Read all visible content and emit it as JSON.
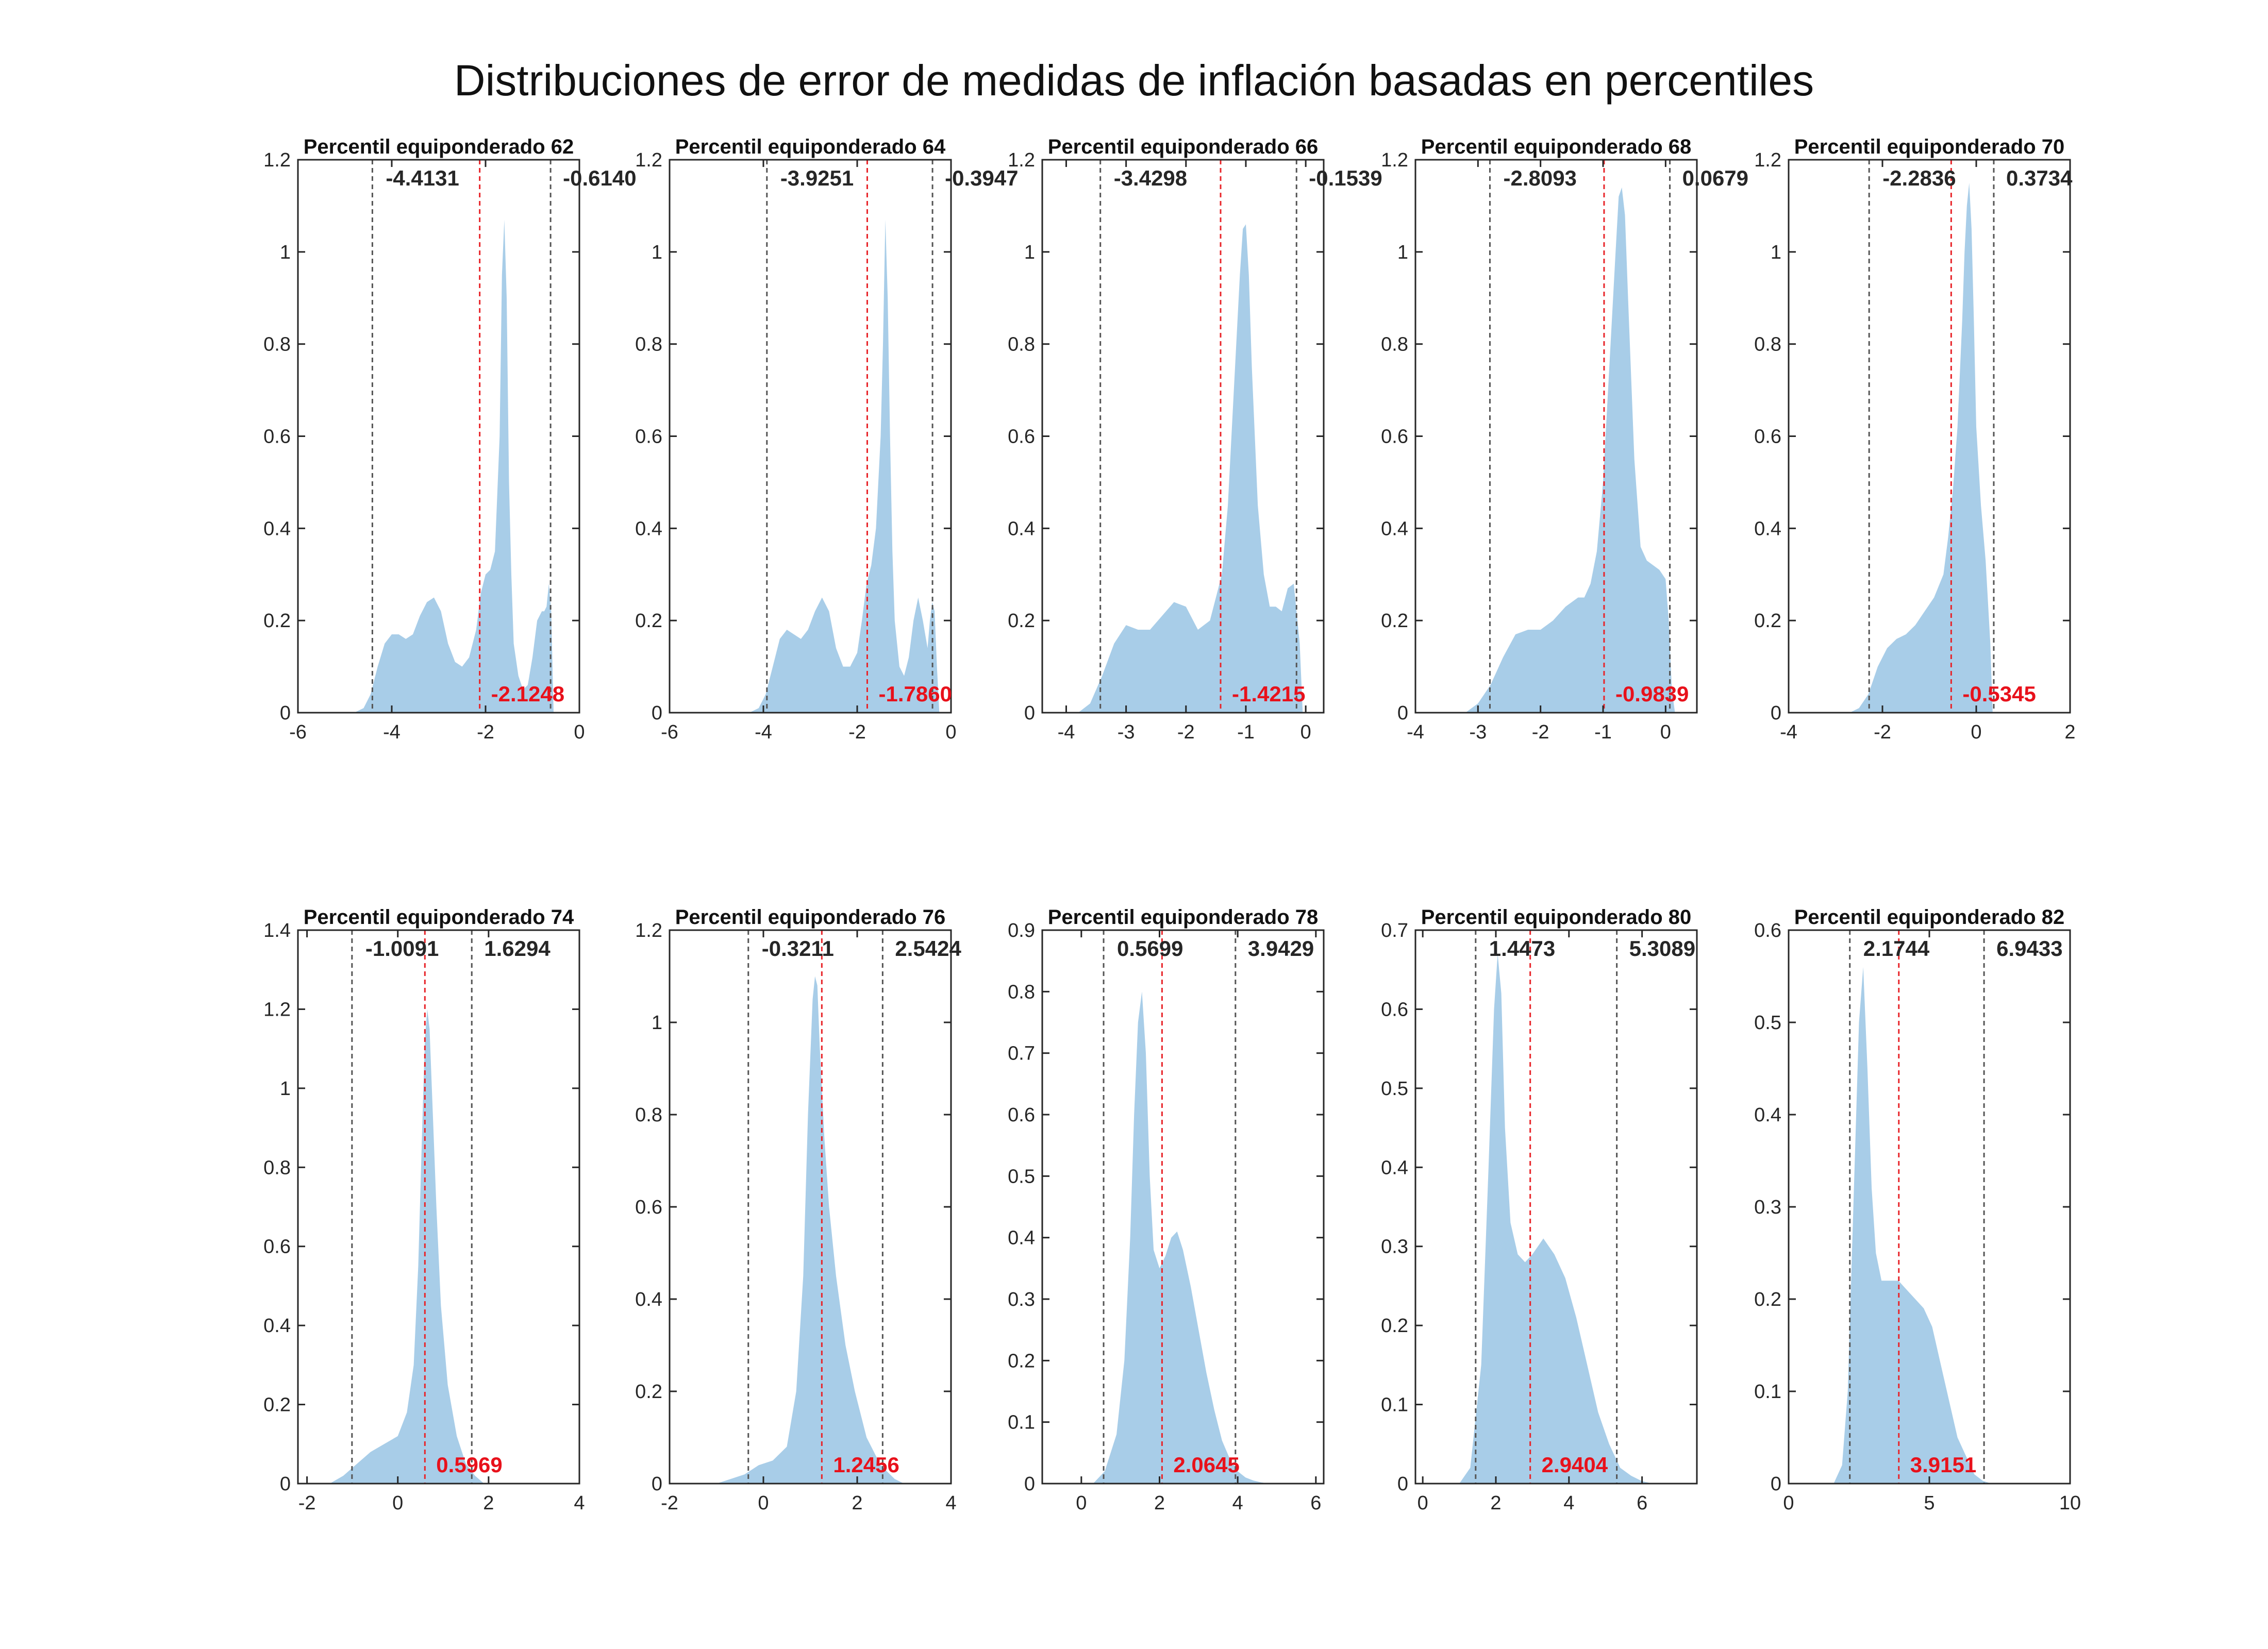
{
  "title": "Distribuciones de error de medidas de inflación basadas en percentiles",
  "colors": {
    "fill": "#a8cde8",
    "lower_upper_lines": "#555555",
    "median_line": "#e8252a",
    "median_label": "#e8111b"
  },
  "chart_data": [
    {
      "type": "area",
      "title": "Percentil equiponderado 62",
      "xlim": [
        -6,
        0
      ],
      "ylim": [
        0,
        1.2
      ],
      "xticks": [
        -6,
        -4,
        -2,
        0
      ],
      "yticks": [
        0,
        0.2,
        0.4,
        0.6,
        0.8,
        1,
        1.2
      ],
      "lower": -4.4131,
      "upper": -0.614,
      "median": -2.1248,
      "lower_label": "-4.4131",
      "upper_label": "-0.6140",
      "median_label": "-2.1248",
      "x": [
        -4.8,
        -4.6,
        -4.45,
        -4.3,
        -4.15,
        -4.0,
        -3.85,
        -3.7,
        -3.55,
        -3.4,
        -3.25,
        -3.1,
        -2.95,
        -2.8,
        -2.65,
        -2.5,
        -2.35,
        -2.2,
        -2.1,
        -2.0,
        -1.9,
        -1.8,
        -1.7,
        -1.65,
        -1.6,
        -1.55,
        -1.5,
        -1.45,
        -1.4,
        -1.3,
        -1.2,
        -1.1,
        -1.0,
        -0.9,
        -0.8,
        -0.75,
        -0.7,
        -0.65,
        -0.6,
        -0.55
      ],
      "y": [
        0,
        0.01,
        0.04,
        0.1,
        0.15,
        0.17,
        0.17,
        0.16,
        0.17,
        0.21,
        0.24,
        0.25,
        0.22,
        0.15,
        0.11,
        0.1,
        0.12,
        0.18,
        0.26,
        0.3,
        0.31,
        0.35,
        0.6,
        0.95,
        1.07,
        0.9,
        0.5,
        0.3,
        0.15,
        0.08,
        0.05,
        0.06,
        0.12,
        0.2,
        0.22,
        0.22,
        0.23,
        0.28,
        0.22,
        0
      ]
    },
    {
      "type": "area",
      "title": "Percentil equiponderado 64",
      "xlim": [
        -6,
        0
      ],
      "ylim": [
        0,
        1.2
      ],
      "xticks": [
        -6,
        -4,
        -2,
        0
      ],
      "yticks": [
        0,
        0.2,
        0.4,
        0.6,
        0.8,
        1,
        1.2
      ],
      "lower": -3.9251,
      "upper": -0.3947,
      "median": -1.786,
      "lower_label": "-3.9251",
      "upper_label": "-0.3947",
      "median_label": "-1.7860",
      "x": [
        -4.3,
        -4.1,
        -3.95,
        -3.8,
        -3.65,
        -3.5,
        -3.35,
        -3.2,
        -3.05,
        -2.9,
        -2.75,
        -2.6,
        -2.45,
        -2.3,
        -2.15,
        -2.0,
        -1.9,
        -1.8,
        -1.7,
        -1.6,
        -1.5,
        -1.45,
        -1.4,
        -1.35,
        -1.3,
        -1.25,
        -1.2,
        -1.1,
        -1.0,
        -0.9,
        -0.8,
        -0.7,
        -0.6,
        -0.5,
        -0.45,
        -0.4,
        -0.35,
        -0.3,
        -0.25
      ],
      "y": [
        0,
        0.01,
        0.04,
        0.1,
        0.16,
        0.18,
        0.17,
        0.16,
        0.18,
        0.22,
        0.25,
        0.22,
        0.14,
        0.1,
        0.1,
        0.13,
        0.2,
        0.28,
        0.32,
        0.4,
        0.6,
        0.8,
        1.07,
        0.9,
        0.6,
        0.35,
        0.2,
        0.1,
        0.08,
        0.12,
        0.2,
        0.25,
        0.2,
        0.14,
        0.2,
        0.24,
        0.22,
        0.1,
        0
      ]
    },
    {
      "type": "area",
      "title": "Percentil equiponderado 66",
      "xlim": [
        -4.4,
        0.3
      ],
      "ylim": [
        0,
        1.2
      ],
      "xticks": [
        -4,
        -3,
        -2,
        -1,
        0
      ],
      "yticks": [
        0,
        0.2,
        0.4,
        0.6,
        0.8,
        1,
        1.2
      ],
      "lower": -3.4298,
      "upper": -0.1539,
      "median": -1.4215,
      "lower_label": "-3.4298",
      "upper_label": "-0.1539",
      "median_label": "-1.4215",
      "x": [
        -3.8,
        -3.6,
        -3.4,
        -3.2,
        -3.0,
        -2.8,
        -2.6,
        -2.4,
        -2.2,
        -2.0,
        -1.8,
        -1.6,
        -1.4,
        -1.3,
        -1.2,
        -1.1,
        -1.05,
        -1.0,
        -0.95,
        -0.9,
        -0.8,
        -0.7,
        -0.6,
        -0.5,
        -0.4,
        -0.3,
        -0.2,
        -0.1,
        -0.05
      ],
      "y": [
        0,
        0.02,
        0.08,
        0.15,
        0.19,
        0.18,
        0.18,
        0.21,
        0.24,
        0.23,
        0.18,
        0.2,
        0.3,
        0.45,
        0.7,
        0.95,
        1.05,
        1.06,
        0.95,
        0.75,
        0.45,
        0.3,
        0.23,
        0.23,
        0.22,
        0.27,
        0.28,
        0.15,
        0
      ]
    },
    {
      "type": "area",
      "title": "Percentil equiponderado 68",
      "xlim": [
        -4,
        0.5
      ],
      "ylim": [
        0,
        1.2
      ],
      "xticks": [
        -4,
        -3,
        -2,
        -1,
        0
      ],
      "yticks": [
        0,
        0.2,
        0.4,
        0.6,
        0.8,
        1,
        1.2
      ],
      "lower": -2.8093,
      "upper": 0.0679,
      "median": -0.9839,
      "lower_label": "-2.8093",
      "upper_label": "0.0679",
      "median_label": "-0.9839",
      "x": [
        -3.2,
        -3.0,
        -2.8,
        -2.6,
        -2.4,
        -2.2,
        -2.0,
        -1.8,
        -1.6,
        -1.4,
        -1.3,
        -1.2,
        -1.1,
        -1.0,
        -0.9,
        -0.8,
        -0.75,
        -0.7,
        -0.65,
        -0.6,
        -0.5,
        -0.4,
        -0.3,
        -0.2,
        -0.1,
        0.0,
        0.05,
        0.1,
        0.15
      ],
      "y": [
        0,
        0.02,
        0.06,
        0.12,
        0.17,
        0.18,
        0.18,
        0.2,
        0.23,
        0.25,
        0.25,
        0.28,
        0.35,
        0.5,
        0.75,
        1.0,
        1.12,
        1.14,
        1.08,
        0.9,
        0.55,
        0.36,
        0.33,
        0.32,
        0.31,
        0.29,
        0.2,
        0.05,
        0
      ]
    },
    {
      "type": "area",
      "title": "Percentil equiponderado 70",
      "xlim": [
        -4,
        2
      ],
      "ylim": [
        0,
        1.2
      ],
      "xticks": [
        -4,
        -2,
        0,
        2
      ],
      "yticks": [
        0,
        0.2,
        0.4,
        0.6,
        0.8,
        1,
        1.2
      ],
      "lower": -2.2836,
      "upper": 0.3734,
      "median": -0.5345,
      "lower_label": "-2.2836",
      "upper_label": "0.3734",
      "median_label": "-0.5345",
      "x": [
        -2.7,
        -2.5,
        -2.3,
        -2.1,
        -1.9,
        -1.7,
        -1.5,
        -1.3,
        -1.1,
        -0.9,
        -0.7,
        -0.6,
        -0.5,
        -0.4,
        -0.3,
        -0.25,
        -0.2,
        -0.15,
        -0.1,
        -0.05,
        0.0,
        0.1,
        0.2,
        0.3,
        0.35
      ],
      "y": [
        0,
        0.01,
        0.04,
        0.1,
        0.14,
        0.16,
        0.17,
        0.19,
        0.22,
        0.25,
        0.3,
        0.38,
        0.48,
        0.62,
        0.85,
        1.0,
        1.1,
        1.15,
        1.05,
        0.85,
        0.62,
        0.45,
        0.33,
        0.15,
        0
      ]
    },
    {
      "type": "area",
      "title": "Percentil equiponderado 74",
      "xlim": [
        -2.2,
        4
      ],
      "ylim": [
        0,
        1.4
      ],
      "xticks": [
        -2,
        0,
        2,
        4
      ],
      "yticks": [
        0,
        0.2,
        0.4,
        0.6,
        0.8,
        1,
        1.2,
        1.4
      ],
      "lower": -1.0091,
      "upper": 1.6294,
      "median": 0.5969,
      "lower_label": "-1.0091",
      "upper_label": "1.6294",
      "median_label": "0.5969",
      "x": [
        -1.5,
        -1.2,
        -0.9,
        -0.6,
        -0.3,
        0.0,
        0.2,
        0.35,
        0.45,
        0.55,
        0.6,
        0.65,
        0.7,
        0.75,
        0.85,
        0.95,
        1.1,
        1.3,
        1.5,
        1.7,
        1.9
      ],
      "y": [
        0,
        0.02,
        0.05,
        0.08,
        0.1,
        0.12,
        0.18,
        0.3,
        0.55,
        0.95,
        1.13,
        1.2,
        1.15,
        1.0,
        0.7,
        0.45,
        0.25,
        0.12,
        0.05,
        0.02,
        0
      ]
    },
    {
      "type": "area",
      "title": "Percentil equiponderado 76",
      "xlim": [
        -2,
        4
      ],
      "ylim": [
        0,
        1.2
      ],
      "xticks": [
        -2,
        0,
        2,
        4
      ],
      "yticks": [
        0,
        0.2,
        0.4,
        0.6,
        0.8,
        1,
        1.2
      ],
      "lower": -0.3211,
      "upper": 2.5424,
      "median": 1.2456,
      "lower_label": "-0.3211",
      "upper_label": "2.5424",
      "median_label": "1.2456",
      "x": [
        -1.0,
        -0.7,
        -0.4,
        -0.1,
        0.2,
        0.5,
        0.7,
        0.85,
        0.95,
        1.05,
        1.1,
        1.15,
        1.2,
        1.3,
        1.4,
        1.55,
        1.75,
        1.95,
        2.2,
        2.5,
        2.8,
        3.0
      ],
      "y": [
        0,
        0.01,
        0.02,
        0.04,
        0.05,
        0.08,
        0.2,
        0.45,
        0.8,
        1.05,
        1.1,
        1.08,
        0.95,
        0.75,
        0.6,
        0.45,
        0.3,
        0.2,
        0.1,
        0.04,
        0.01,
        0
      ]
    },
    {
      "type": "area",
      "title": "Percentil equiponderado 78",
      "xlim": [
        -1,
        6.2
      ],
      "ylim": [
        0,
        0.9
      ],
      "xticks": [
        0,
        2,
        4,
        6
      ],
      "yticks": [
        0,
        0.1,
        0.2,
        0.3,
        0.4,
        0.5,
        0.6,
        0.7,
        0.8,
        0.9
      ],
      "lower": 0.5699,
      "upper": 3.9429,
      "median": 2.0645,
      "lower_label": "0.5699",
      "upper_label": "3.9429",
      "median_label": "2.0645",
      "x": [
        0.3,
        0.6,
        0.9,
        1.1,
        1.25,
        1.35,
        1.45,
        1.55,
        1.65,
        1.75,
        1.85,
        2.0,
        2.15,
        2.3,
        2.45,
        2.6,
        2.8,
        3.0,
        3.2,
        3.4,
        3.6,
        3.8,
        4.0,
        4.2,
        4.4,
        4.6,
        4.8
      ],
      "y": [
        0,
        0.02,
        0.08,
        0.2,
        0.4,
        0.6,
        0.75,
        0.8,
        0.7,
        0.5,
        0.38,
        0.35,
        0.37,
        0.4,
        0.41,
        0.38,
        0.32,
        0.25,
        0.18,
        0.12,
        0.07,
        0.04,
        0.02,
        0.01,
        0.005,
        0.002,
        0
      ]
    },
    {
      "type": "area",
      "title": "Percentil equiponderado 80",
      "xlim": [
        -0.2,
        7.5
      ],
      "ylim": [
        0,
        0.7
      ],
      "xticks": [
        0,
        2,
        4,
        6
      ],
      "yticks": [
        0,
        0.1,
        0.2,
        0.3,
        0.4,
        0.5,
        0.6,
        0.7
      ],
      "lower": 1.4473,
      "upper": 5.3089,
      "median": 2.9404,
      "lower_label": "1.4473",
      "upper_label": "5.3089",
      "median_label": "2.9404",
      "x": [
        1.0,
        1.3,
        1.6,
        1.8,
        1.95,
        2.05,
        2.15,
        2.25,
        2.4,
        2.6,
        2.8,
        3.0,
        3.3,
        3.6,
        3.9,
        4.2,
        4.5,
        4.8,
        5.1,
        5.4,
        5.7,
        6.0,
        6.3
      ],
      "y": [
        0,
        0.02,
        0.15,
        0.4,
        0.6,
        0.67,
        0.62,
        0.45,
        0.33,
        0.29,
        0.28,
        0.29,
        0.31,
        0.29,
        0.26,
        0.21,
        0.15,
        0.09,
        0.05,
        0.02,
        0.01,
        0.003,
        0
      ]
    },
    {
      "type": "area",
      "title": "Percentil equiponderado 82",
      "xlim": [
        0,
        10
      ],
      "ylim": [
        0,
        0.6
      ],
      "xticks": [
        0,
        5,
        10
      ],
      "yticks": [
        0,
        0.1,
        0.2,
        0.3,
        0.4,
        0.5,
        0.6
      ],
      "lower": 2.1744,
      "upper": 6.9433,
      "median": 3.9151,
      "lower_label": "2.1744",
      "upper_label": "6.9433",
      "median_label": "3.9151",
      "x": [
        1.6,
        1.9,
        2.1,
        2.3,
        2.5,
        2.65,
        2.8,
        2.95,
        3.1,
        3.3,
        3.6,
        3.9,
        4.2,
        4.5,
        4.8,
        5.1,
        5.4,
        5.7,
        6.0,
        6.3,
        6.6,
        6.9,
        7.2
      ],
      "y": [
        0,
        0.02,
        0.1,
        0.3,
        0.5,
        0.56,
        0.45,
        0.32,
        0.25,
        0.22,
        0.22,
        0.22,
        0.21,
        0.2,
        0.19,
        0.17,
        0.13,
        0.09,
        0.05,
        0.03,
        0.01,
        0.003,
        0
      ]
    }
  ]
}
